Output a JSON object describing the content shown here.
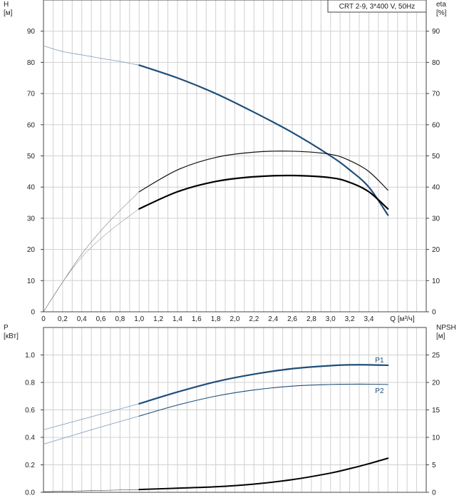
{
  "chart_data": [
    {
      "type": "line",
      "panel": "head-efficiency",
      "legend_box": "CRT 2-9, 3*400 V, 50Hz",
      "y_axis_left": {
        "label_line1": "H",
        "label_line2": "[м]",
        "range": [
          0,
          100
        ],
        "ticks": [
          0,
          10,
          20,
          30,
          40,
          50,
          60,
          70,
          80,
          90
        ]
      },
      "y_axis_right": {
        "label_line1": "eta",
        "label_line2": "[%]",
        "range": [
          0,
          100
        ],
        "ticks": [
          0,
          10,
          20,
          30,
          40,
          50,
          60,
          70,
          80,
          90
        ]
      },
      "x_axis": {
        "label": "Q [м³/ч]",
        "range": [
          0,
          4.0
        ],
        "ticks": [
          0,
          0.2,
          0.4,
          0.6,
          0.8,
          1.0,
          1.2,
          1.4,
          1.6,
          1.8,
          2.0,
          2.2,
          2.4,
          2.6,
          2.8,
          3.0,
          3.2,
          3.4
        ],
        "tick_labels": [
          "0",
          "0,2",
          "0,4",
          "0,6",
          "0,8",
          "1,0",
          "1,2",
          "1,4",
          "1,6",
          "1,8",
          "2,0",
          "2,2",
          "2,4",
          "2,6",
          "2,8",
          "3,0",
          "3,2",
          "3,4"
        ]
      },
      "grid": true,
      "series": [
        {
          "color": "#7a9ab8",
          "width": 0.8,
          "x": [
            0,
            0.2,
            0.4,
            0.6,
            0.8,
            1.0
          ],
          "y": [
            85.3,
            83.5,
            82.4,
            81.3,
            80.3,
            79.1
          ]
        },
        {
          "color": "#1f4e79",
          "width": 2.2,
          "x": [
            1.0,
            1.4,
            1.8,
            2.2,
            2.6,
            3.0,
            3.2,
            3.4,
            3.6
          ],
          "y": [
            79.1,
            75.0,
            70.0,
            64.0,
            57.5,
            50.0,
            45.5,
            40.0,
            31.0
          ]
        },
        {
          "color": "#333333",
          "width": 0.5,
          "x": [
            0,
            0.2,
            0.4,
            0.6,
            0.8,
            1.0
          ],
          "y": [
            0,
            9.5,
            18.5,
            26.0,
            32.5,
            38.5
          ]
        },
        {
          "color": "#111111",
          "width": 1.2,
          "x": [
            1.0,
            1.4,
            1.8,
            2.2,
            2.6,
            3.0,
            3.2,
            3.4,
            3.6
          ],
          "y": [
            38.5,
            45.5,
            49.5,
            51.2,
            51.5,
            50.5,
            48.5,
            45.0,
            39.0
          ]
        },
        {
          "color": "#666666",
          "width": 0.5,
          "x": [
            0,
            0.2,
            0.4,
            0.6,
            0.8,
            1.0
          ],
          "y": [
            0,
            9.5,
            17.5,
            23.5,
            28.5,
            33.0
          ]
        },
        {
          "color": "#000000",
          "width": 2.2,
          "x": [
            1.0,
            1.4,
            1.8,
            2.2,
            2.6,
            3.0,
            3.2,
            3.4,
            3.6
          ],
          "y": [
            33.0,
            38.5,
            41.8,
            43.3,
            43.7,
            43.0,
            41.5,
            38.5,
            33.0
          ]
        }
      ]
    },
    {
      "type": "line",
      "panel": "power-npsh",
      "y_axis_left": {
        "label_line1": "P",
        "label_line2": "[кВт]",
        "range": [
          0,
          1.2
        ],
        "ticks": [
          0,
          0.2,
          0.4,
          0.6,
          0.8,
          1.0
        ],
        "tick_labels": [
          "0.0",
          "0.2",
          "0.4",
          "0.6",
          "0.8",
          "1.0"
        ]
      },
      "y_axis_right": {
        "label_line1": "NPSH",
        "label_line2": "[м]",
        "range": [
          0,
          30
        ],
        "ticks": [
          0,
          5,
          10,
          15,
          20,
          25
        ]
      },
      "x_axis": {
        "range": [
          0,
          4.0
        ],
        "ticks": [
          0,
          0.2,
          0.4,
          0.6,
          0.8,
          1.0,
          1.2,
          1.4,
          1.6,
          1.8,
          2.0,
          2.2,
          2.4,
          2.6,
          2.8,
          3.0,
          3.2,
          3.4
        ]
      },
      "grid": true,
      "series": [
        {
          "color": "#7a9ab8",
          "width": 0.8,
          "x": [
            0,
            0.5,
            1.0
          ],
          "y": [
            0.455,
            0.55,
            0.645
          ]
        },
        {
          "name": "P1",
          "color": "#1f4e79",
          "width": 2.2,
          "x": [
            1.0,
            1.4,
            1.8,
            2.2,
            2.6,
            3.0,
            3.2,
            3.4,
            3.6
          ],
          "y": [
            0.645,
            0.73,
            0.805,
            0.86,
            0.9,
            0.922,
            0.928,
            0.928,
            0.925
          ]
        },
        {
          "color": "#7a9ab8",
          "width": 0.8,
          "x": [
            0,
            0.5,
            1.0
          ],
          "y": [
            0.35,
            0.455,
            0.555
          ]
        },
        {
          "name": "P2",
          "color": "#1f4e79",
          "width": 1.1,
          "x": [
            1.0,
            1.4,
            1.8,
            2.2,
            2.6,
            3.0,
            3.2,
            3.4,
            3.6
          ],
          "y": [
            0.555,
            0.635,
            0.7,
            0.745,
            0.773,
            0.785,
            0.787,
            0.787,
            0.785
          ]
        },
        {
          "color": "#333333",
          "width": 0.6,
          "x": [
            0,
            0.5,
            1.0
          ],
          "y_axis": "right",
          "y": [
            0.1,
            0.3,
            0.5
          ]
        },
        {
          "color": "#000000",
          "width": 2.0,
          "y_axis": "right",
          "x": [
            1.0,
            1.4,
            1.8,
            2.2,
            2.6,
            3.0,
            3.2,
            3.4,
            3.6
          ],
          "y": [
            0.5,
            0.75,
            1.0,
            1.5,
            2.3,
            3.5,
            4.3,
            5.2,
            6.2
          ]
        }
      ]
    }
  ]
}
